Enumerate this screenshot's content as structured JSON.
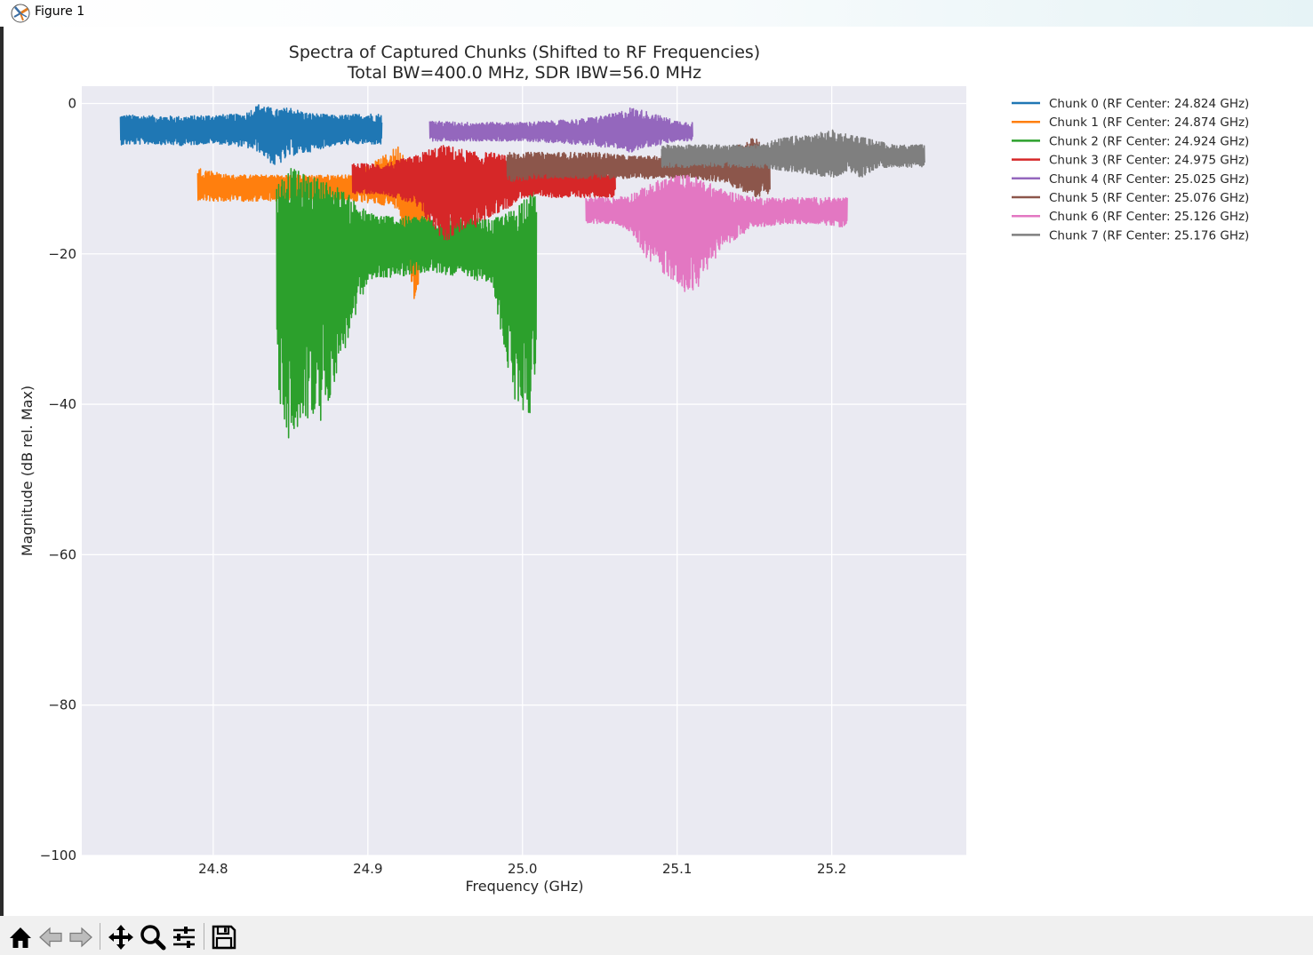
{
  "window": {
    "title": "Figure 1"
  },
  "toolbar": {
    "buttons": [
      {
        "name": "home-button",
        "icon": "home-icon"
      },
      {
        "name": "back-button",
        "icon": "arrow-left-icon"
      },
      {
        "name": "forward-button",
        "icon": "arrow-right-icon"
      },
      {
        "name": "pan-button",
        "icon": "move-icon"
      },
      {
        "name": "zoom-button",
        "icon": "magnifier-icon"
      },
      {
        "name": "configure-subplots-button",
        "icon": "sliders-icon"
      },
      {
        "name": "save-button",
        "icon": "floppy-disk-icon"
      }
    ]
  },
  "chart_data": {
    "type": "line",
    "title": "Spectra of Captured Chunks (Shifted to RF Frequencies)",
    "subtitle": "Total BW=400.0 MHz, SDR IBW=56.0 MHz",
    "xlabel": "Frequency (GHz)",
    "ylabel": "Magnitude (dB rel. Max)",
    "xlim": [
      24.715,
      25.287
    ],
    "ylim": [
      -100,
      2.3
    ],
    "xticks": [
      24.8,
      24.9,
      25.0,
      25.1,
      25.2
    ],
    "xtick_labels": [
      "24.8",
      "24.9",
      "25.0",
      "25.1",
      "25.2"
    ],
    "yticks": [
      0,
      -20,
      -40,
      -60,
      -80,
      -100
    ],
    "ytick_labels": [
      "0",
      "−20",
      "−40",
      "−60",
      "−80",
      "−100"
    ],
    "grid": true,
    "legend_position": "outside-right-top",
    "series": [
      {
        "name": "Chunk 0 (RF Center: 24.824 GHz)",
        "color": "#1f77b4",
        "x_range": [
          24.74,
          24.909
        ],
        "x": [
          24.74,
          24.76,
          24.78,
          24.8,
          24.82,
          24.83,
          24.84,
          24.85,
          24.86,
          24.87,
          24.88,
          24.9,
          24.909
        ],
        "y_center": [
          -3.5,
          -3.5,
          -3.6,
          -3.5,
          -3.4,
          -3.0,
          -3.3,
          -3.1,
          -3.6,
          -3.4,
          -3.6,
          -3.5,
          -3.5
        ],
        "y_low": [
          -5.5,
          -5.4,
          -5.6,
          -5.3,
          -5.8,
          -6.5,
          -8.5,
          -7.0,
          -6.6,
          -6.0,
          -5.5,
          -5.4,
          -5.5
        ],
        "y_high": [
          -1.5,
          -1.6,
          -1.7,
          -1.5,
          -1.4,
          0.0,
          -0.8,
          -0.5,
          -1.2,
          -1.4,
          -1.6,
          -1.3,
          -1.4
        ]
      },
      {
        "name": "Chunk 1 (RF Center: 24.874 GHz)",
        "color": "#ff7f0e",
        "x_range": [
          24.79,
          24.96
        ],
        "x": [
          24.79,
          24.81,
          24.83,
          24.85,
          24.87,
          24.89,
          24.91,
          24.92,
          24.93,
          24.94,
          24.95,
          24.96
        ],
        "y_center": [
          -11,
          -11,
          -11,
          -11,
          -11,
          -11,
          -10.5,
          -11,
          -11,
          -11,
          -11,
          -11
        ],
        "y_low": [
          -13,
          -13,
          -13,
          -13,
          -13,
          -13,
          -13.5,
          -14.0,
          -27.5,
          -14.0,
          -13.5,
          -13.5
        ],
        "y_high": [
          -8.5,
          -9.5,
          -9.5,
          -9.5,
          -9.5,
          -9.5,
          -7.0,
          -5.5,
          -8.5,
          -9.0,
          -9.5,
          -9.5
        ]
      },
      {
        "name": "Chunk 2 (RF Center: 24.924 GHz)",
        "color": "#2ca02c",
        "x_range": [
          24.841,
          25.009
        ],
        "x": [
          24.841,
          24.85,
          24.86,
          24.87,
          24.88,
          24.89,
          24.9,
          24.92,
          24.94,
          24.96,
          24.98,
          24.995,
          25.005,
          25.009
        ],
        "y_center": [
          -19,
          -19,
          -19,
          -19,
          -19,
          -19,
          -19,
          -19,
          -18.5,
          -19,
          -19.5,
          -20,
          -20,
          -20
        ],
        "y_low": [
          -39.0,
          -46.0,
          -42.0,
          -43.0,
          -36.0,
          -30.0,
          -23.5,
          -23.0,
          -22.5,
          -23.0,
          -24.0,
          -40.0,
          -41.5,
          -35.0
        ],
        "y_high": [
          -10.5,
          -8.5,
          -9.5,
          -10.0,
          -11.0,
          -12.5,
          -14.5,
          -15.0,
          -15.0,
          -15.0,
          -15.5,
          -14.0,
          -11.0,
          -12.0
        ]
      },
      {
        "name": "Chunk 3 (RF Center: 24.975 GHz)",
        "color": "#d62728",
        "x_range": [
          24.89,
          25.06
        ],
        "x": [
          24.89,
          24.91,
          24.93,
          24.94,
          24.95,
          24.96,
          24.97,
          24.98,
          24.99,
          25.0,
          25.02,
          25.04,
          25.06
        ],
        "y_center": [
          -10.5,
          -10.5,
          -10.5,
          -10.5,
          -10.5,
          -10.5,
          -10.5,
          -10.5,
          -10.5,
          -10.5,
          -10.5,
          -10.5,
          -10.5
        ],
        "y_low": [
          -12.0,
          -12.0,
          -13.5,
          -16.0,
          -18.5,
          -17.0,
          -16.5,
          -15.0,
          -14.0,
          -12.5,
          -12.5,
          -12.5,
          -12.5
        ],
        "y_high": [
          -8.0,
          -8.0,
          -7.0,
          -6.0,
          -5.5,
          -6.0,
          -6.5,
          -6.5,
          -7.0,
          -8.0,
          -8.5,
          -8.5,
          -8.5
        ]
      },
      {
        "name": "Chunk 4 (RF Center: 25.025 GHz)",
        "color": "#9467bd",
        "x_range": [
          24.94,
          25.11
        ],
        "x": [
          24.94,
          24.96,
          24.98,
          25.0,
          25.02,
          25.04,
          25.06,
          25.07,
          25.08,
          25.09,
          25.1,
          25.11
        ],
        "y_center": [
          -3.8,
          -3.8,
          -3.8,
          -3.8,
          -3.8,
          -3.8,
          -3.7,
          -3.6,
          -3.6,
          -3.7,
          -3.8,
          -3.8
        ],
        "y_low": [
          -5.0,
          -5.0,
          -5.0,
          -5.0,
          -5.2,
          -5.5,
          -6.0,
          -6.5,
          -5.8,
          -5.5,
          -5.0,
          -5.0
        ],
        "y_high": [
          -2.3,
          -2.5,
          -2.5,
          -2.5,
          -2.3,
          -2.0,
          -1.3,
          -0.5,
          -1.0,
          -1.7,
          -2.3,
          -2.5
        ]
      },
      {
        "name": "Chunk 5 (RF Center: 25.076 GHz)",
        "color": "#8c564b",
        "x_range": [
          24.99,
          25.16
        ],
        "x": [
          24.99,
          25.01,
          25.03,
          25.05,
          25.07,
          25.09,
          25.11,
          25.13,
          25.14,
          25.15,
          25.16
        ],
        "y_center": [
          -8.5,
          -8.5,
          -8.5,
          -8.5,
          -8.5,
          -8.5,
          -8.5,
          -8.5,
          -8.5,
          -8.5,
          -9.0
        ],
        "y_low": [
          -10.5,
          -10.0,
          -10.0,
          -10.0,
          -10.0,
          -10.0,
          -10.0,
          -10.5,
          -11.5,
          -12.5,
          -12.0
        ],
        "y_high": [
          -6.5,
          -6.5,
          -6.5,
          -6.5,
          -7.0,
          -7.0,
          -7.0,
          -6.5,
          -5.5,
          -4.5,
          -6.0
        ]
      },
      {
        "name": "Chunk 6 (RF Center: 25.126 GHz)",
        "color": "#e377c2",
        "x_range": [
          25.041,
          25.21
        ],
        "x": [
          25.041,
          25.06,
          25.07,
          25.08,
          25.09,
          25.1,
          25.11,
          25.12,
          25.13,
          25.15,
          25.17,
          25.19,
          25.21
        ],
        "y_center": [
          -14.5,
          -14.5,
          -14.5,
          -14.5,
          -14.5,
          -14.5,
          -14.5,
          -14.5,
          -14.5,
          -14.5,
          -14.5,
          -14.5,
          -14.5
        ],
        "y_low": [
          -16.0,
          -16.0,
          -17.0,
          -20.5,
          -22.5,
          -24.0,
          -26.0,
          -22.0,
          -19.0,
          -16.5,
          -16.0,
          -16.0,
          -16.5
        ],
        "y_high": [
          -12.5,
          -12.5,
          -12.0,
          -11.0,
          -10.0,
          -9.5,
          -9.5,
          -10.5,
          -11.5,
          -12.5,
          -12.5,
          -12.5,
          -12.5
        ]
      },
      {
        "name": "Chunk 7 (RF Center: 25.176 GHz)",
        "color": "#7f7f7f",
        "x_range": [
          25.09,
          25.26
        ],
        "x": [
          25.09,
          25.11,
          25.13,
          25.15,
          25.17,
          25.19,
          25.2,
          25.21,
          25.22,
          25.23,
          25.24,
          25.26
        ],
        "y_center": [
          -7.0,
          -7.0,
          -7.0,
          -7.0,
          -7.0,
          -6.8,
          -6.8,
          -6.8,
          -6.8,
          -7.0,
          -7.0,
          -7.0
        ],
        "y_low": [
          -8.5,
          -8.5,
          -8.5,
          -8.5,
          -9.0,
          -9.5,
          -10.0,
          -9.0,
          -10.0,
          -8.5,
          -8.5,
          -8.5
        ],
        "y_high": [
          -5.5,
          -5.5,
          -5.5,
          -5.5,
          -4.5,
          -4.0,
          -3.5,
          -4.0,
          -4.5,
          -5.0,
          -5.5,
          -5.5
        ]
      }
    ]
  }
}
